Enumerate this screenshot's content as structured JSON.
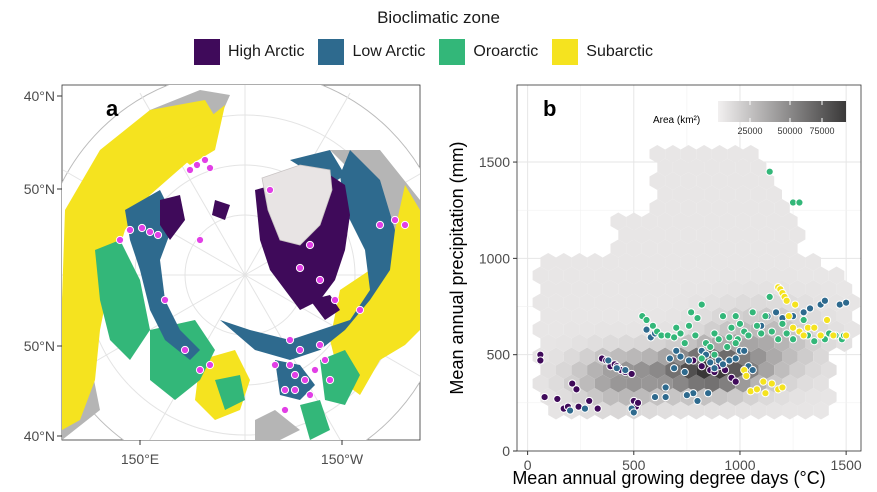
{
  "legend": {
    "title": "Bioclimatic zone",
    "items": [
      {
        "label": "High Arctic",
        "color": "#3f0a5a"
      },
      {
        "label": "Low Arctic",
        "color": "#2e6a8e"
      },
      {
        "label": "Oroarctic",
        "color": "#33b779"
      },
      {
        "label": "Subarctic",
        "color": "#f5e31f"
      }
    ]
  },
  "panel_a": {
    "tag": "a",
    "lat_labels": [
      "40°N",
      "50°N",
      "50°N",
      "40°N"
    ],
    "lon_labels": [
      "150°E",
      "150°W"
    ],
    "site_color": "#e23fe6"
  },
  "chart_data": {
    "type": "scatter",
    "tag": "b",
    "xlabel": "Mean annual growing degree days (°C)",
    "ylabel": "Mean annual precipitation (mm)",
    "xlim": [
      -50,
      1570
    ],
    "ylim": [
      0,
      1900
    ],
    "x_ticks": [
      0,
      500,
      1000,
      1500
    ],
    "y_ticks": [
      0,
      500,
      1000,
      1500
    ],
    "grid": true,
    "background": "hexbin",
    "hex_legend": {
      "title": "Area (km²)",
      "ticks": [
        "25000",
        "50000",
        "75000"
      ],
      "placement": "top-right"
    },
    "series": [
      {
        "name": "High Arctic",
        "color": "#3f0a5a",
        "points": [
          [
            60,
            500
          ],
          [
            60,
            470
          ],
          [
            80,
            280
          ],
          [
            140,
            270
          ],
          [
            170,
            220
          ],
          [
            190,
            230
          ],
          [
            210,
            350
          ],
          [
            230,
            320
          ],
          [
            240,
            230
          ],
          [
            290,
            260
          ],
          [
            330,
            220
          ],
          [
            350,
            480
          ],
          [
            370,
            470
          ],
          [
            390,
            440
          ],
          [
            410,
            450
          ],
          [
            420,
            440
          ],
          [
            430,
            430
          ],
          [
            440,
            420
          ],
          [
            460,
            410
          ],
          [
            490,
            400
          ],
          [
            500,
            260
          ],
          [
            510,
            230
          ],
          [
            520,
            250
          ],
          [
            780,
            470
          ],
          [
            820,
            440
          ],
          [
            860,
            420
          ],
          [
            880,
            410
          ],
          [
            900,
            440
          ],
          [
            930,
            420
          ],
          [
            960,
            380
          ],
          [
            980,
            360
          ]
        ]
      },
      {
        "name": "Low Arctic",
        "color": "#2e6a8e",
        "points": [
          [
            200,
            210
          ],
          [
            270,
            220
          ],
          [
            380,
            470
          ],
          [
            420,
            430
          ],
          [
            460,
            420
          ],
          [
            490,
            220
          ],
          [
            500,
            200
          ],
          [
            560,
            630
          ],
          [
            580,
            590
          ],
          [
            600,
            610
          ],
          [
            600,
            280
          ],
          [
            650,
            280
          ],
          [
            650,
            330
          ],
          [
            670,
            480
          ],
          [
            690,
            430
          ],
          [
            700,
            520
          ],
          [
            720,
            490
          ],
          [
            740,
            410
          ],
          [
            760,
            470
          ],
          [
            780,
            300
          ],
          [
            800,
            260
          ],
          [
            820,
            520
          ],
          [
            840,
            500
          ],
          [
            860,
            460
          ],
          [
            880,
            430
          ],
          [
            900,
            470
          ],
          [
            920,
            450
          ],
          [
            950,
            470
          ],
          [
            980,
            480
          ],
          [
            1000,
            520
          ],
          [
            1020,
            520
          ],
          [
            1040,
            440
          ],
          [
            1060,
            420
          ],
          [
            1100,
            650
          ],
          [
            1130,
            700
          ],
          [
            1170,
            720
          ],
          [
            1200,
            690
          ],
          [
            1250,
            700
          ],
          [
            1300,
            720
          ],
          [
            1330,
            740
          ],
          [
            1380,
            760
          ],
          [
            1400,
            780
          ],
          [
            1470,
            760
          ],
          [
            1500,
            770
          ],
          [
            750,
            290
          ],
          [
            850,
            300
          ]
        ]
      },
      {
        "name": "Oroarctic",
        "color": "#33b779",
        "points": [
          [
            1140,
            1450
          ],
          [
            1250,
            1290
          ],
          [
            1280,
            1290
          ],
          [
            540,
            700
          ],
          [
            560,
            680
          ],
          [
            590,
            650
          ],
          [
            610,
            620
          ],
          [
            630,
            600
          ],
          [
            660,
            600
          ],
          [
            690,
            590
          ],
          [
            700,
            640
          ],
          [
            720,
            610
          ],
          [
            740,
            560
          ],
          [
            760,
            650
          ],
          [
            770,
            720
          ],
          [
            790,
            600
          ],
          [
            800,
            690
          ],
          [
            820,
            760
          ],
          [
            840,
            560
          ],
          [
            860,
            540
          ],
          [
            880,
            610
          ],
          [
            900,
            580
          ],
          [
            920,
            700
          ],
          [
            940,
            540
          ],
          [
            950,
            590
          ],
          [
            960,
            640
          ],
          [
            980,
            700
          ],
          [
            990,
            580
          ],
          [
            1000,
            660
          ],
          [
            1020,
            620
          ],
          [
            1040,
            600
          ],
          [
            1060,
            720
          ],
          [
            1080,
            650
          ],
          [
            1100,
            610
          ],
          [
            1120,
            700
          ],
          [
            1140,
            800
          ],
          [
            1150,
            620
          ],
          [
            1180,
            580
          ],
          [
            1200,
            660
          ],
          [
            1220,
            610
          ],
          [
            1250,
            580
          ],
          [
            1280,
            620
          ],
          [
            1300,
            680
          ],
          [
            1320,
            600
          ],
          [
            1350,
            570
          ],
          [
            1380,
            600
          ],
          [
            1400,
            580
          ],
          [
            1420,
            610
          ],
          [
            1450,
            600
          ],
          [
            1480,
            580
          ],
          [
            1490,
            600
          ],
          [
            980,
            560
          ],
          [
            880,
            500
          ],
          [
            820,
            480
          ]
        ]
      },
      {
        "name": "Subarctic",
        "color": "#f5e31f",
        "points": [
          [
            1180,
            850
          ],
          [
            1190,
            840
          ],
          [
            1200,
            820
          ],
          [
            1210,
            800
          ],
          [
            1220,
            780
          ],
          [
            1230,
            700
          ],
          [
            1250,
            640
          ],
          [
            1260,
            760
          ],
          [
            1280,
            620
          ],
          [
            1300,
            600
          ],
          [
            1320,
            640
          ],
          [
            1350,
            640
          ],
          [
            1380,
            600
          ],
          [
            1410,
            680
          ],
          [
            1440,
            600
          ],
          [
            1500,
            600
          ],
          [
            1050,
            310
          ],
          [
            1080,
            320
          ],
          [
            1110,
            360
          ],
          [
            1120,
            300
          ],
          [
            1150,
            350
          ],
          [
            1180,
            320
          ],
          [
            1200,
            330
          ],
          [
            1020,
            420
          ],
          [
            1030,
            390
          ]
        ]
      }
    ]
  }
}
